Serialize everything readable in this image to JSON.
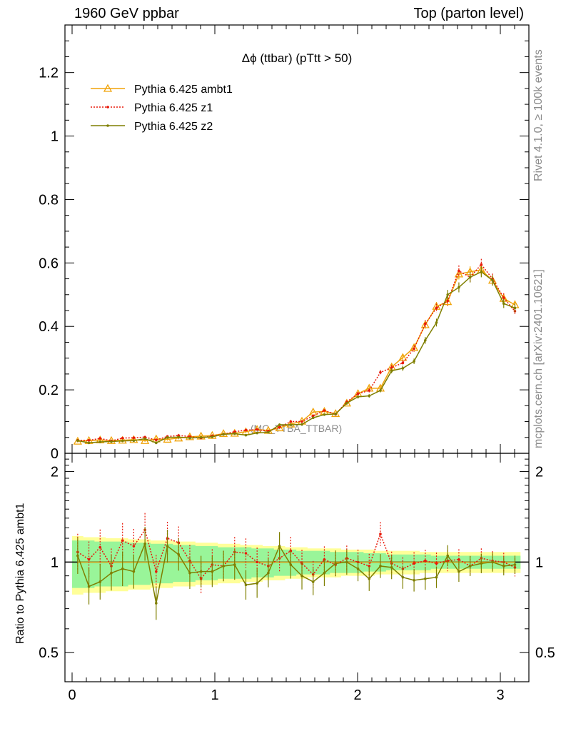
{
  "header": {
    "left": "1960 GeV ppbar",
    "right": "Top (parton level)"
  },
  "side": {
    "rivet": "Rivet 4.1.0, ≥ 100k events",
    "mcplots": "mcplots.cern.ch [arXiv:2401.10621]"
  },
  "chart_data": {
    "type": "line",
    "title": "Δϕ (ttbar) (pTtt > 50)",
    "watermark": "(MC_TTBA_TTBAR)",
    "xlabel": "",
    "ylabel": "",
    "xlim": [
      -0.05,
      3.2
    ],
    "ylim": [
      0,
      1.35
    ],
    "yticks": [
      0,
      0.2,
      0.4,
      0.6,
      0.8,
      1,
      1.2
    ],
    "ytick_labels": [
      "0",
      "0.2",
      "0.4",
      "0.6",
      "0.8",
      "1",
      "1.2"
    ],
    "xticks": [
      0,
      1,
      2,
      3
    ],
    "xtick_labels": [
      "0",
      "1",
      "2",
      "3"
    ],
    "x": [
      0.0393,
      0.1178,
      0.1963,
      0.2749,
      0.3534,
      0.432,
      0.5105,
      0.589,
      0.6676,
      0.7461,
      0.8247,
      0.9032,
      0.9817,
      1.0603,
      1.1388,
      1.2174,
      1.2959,
      1.3744,
      1.453,
      1.5315,
      1.6101,
      1.6886,
      1.7671,
      1.8457,
      1.9242,
      2.0028,
      2.0813,
      2.1598,
      2.2384,
      2.3169,
      2.3955,
      2.474,
      2.5525,
      2.6311,
      2.7096,
      2.7882,
      2.8667,
      2.9452,
      3.0238,
      3.1023
    ],
    "series": [
      {
        "name": "Pythia 6.425 ambt1",
        "color": "#f0a30a",
        "style": "solid",
        "marker": "triangle",
        "values": [
          0.038,
          0.04,
          0.042,
          0.04,
          0.041,
          0.043,
          0.04,
          0.045,
          0.044,
          0.048,
          0.052,
          0.054,
          0.056,
          0.062,
          0.063,
          0.068,
          0.075,
          0.072,
          0.08,
          0.092,
          0.101,
          0.13,
          0.132,
          0.125,
          0.158,
          0.188,
          0.205,
          0.205,
          0.272,
          0.302,
          0.333,
          0.405,
          0.463,
          0.478,
          0.565,
          0.572,
          0.578,
          0.545,
          0.488,
          0.468
        ]
      },
      {
        "name": "Pythia 6.425 z1",
        "color": "#e8190a",
        "style": "dotted",
        "marker": "dot",
        "values": [
          0.041,
          0.041,
          0.047,
          0.039,
          0.048,
          0.049,
          0.051,
          0.042,
          0.053,
          0.056,
          0.053,
          0.048,
          0.055,
          0.06,
          0.068,
          0.073,
          0.075,
          0.07,
          0.082,
          0.1,
          0.1,
          0.118,
          0.135,
          0.123,
          0.162,
          0.188,
          0.198,
          0.255,
          0.27,
          0.285,
          0.33,
          0.408,
          0.458,
          0.48,
          0.575,
          0.555,
          0.595,
          0.55,
          0.49,
          0.448
        ]
      },
      {
        "name": "Pythia 6.425 z2",
        "color": "#7f7f00",
        "style": "solid",
        "marker": "dot",
        "values": [
          0.04,
          0.033,
          0.036,
          0.037,
          0.039,
          0.04,
          0.046,
          0.033,
          0.05,
          0.051,
          0.048,
          0.05,
          0.052,
          0.06,
          0.062,
          0.057,
          0.064,
          0.066,
          0.09,
          0.09,
          0.091,
          0.112,
          0.122,
          0.124,
          0.158,
          0.178,
          0.181,
          0.198,
          0.26,
          0.268,
          0.29,
          0.356,
          0.412,
          0.5,
          0.523,
          0.555,
          0.572,
          0.545,
          0.472,
          0.458
        ]
      }
    ],
    "ratio": {
      "ylabel": "Ratio to Pythia 6.425 ambt1",
      "ylim": [
        0.4,
        2.3
      ],
      "yticks": [
        0.5,
        1,
        2
      ],
      "ytick_labels": [
        "0.5",
        "1",
        "2"
      ],
      "band_inner": [
        0.18,
        0.18,
        0.17,
        0.17,
        0.17,
        0.16,
        0.16,
        0.15,
        0.15,
        0.14,
        0.14,
        0.13,
        0.13,
        0.12,
        0.12,
        0.12,
        0.11,
        0.11,
        0.1,
        0.1,
        0.09,
        0.09,
        0.09,
        0.08,
        0.08,
        0.08,
        0.07,
        0.07,
        0.06,
        0.06,
        0.06,
        0.06,
        0.05,
        0.05,
        0.05,
        0.05,
        0.05,
        0.05,
        0.05,
        0.05
      ],
      "band_outer": [
        0.22,
        0.21,
        0.21,
        0.2,
        0.2,
        0.19,
        0.19,
        0.18,
        0.18,
        0.17,
        0.17,
        0.16,
        0.16,
        0.15,
        0.15,
        0.14,
        0.14,
        0.13,
        0.13,
        0.12,
        0.12,
        0.11,
        0.11,
        0.11,
        0.1,
        0.1,
        0.1,
        0.09,
        0.09,
        0.09,
        0.09,
        0.08,
        0.08,
        0.08,
        0.08,
        0.08,
        0.08,
        0.08,
        0.08,
        0.08
      ],
      "series": [
        {
          "name": "Pythia 6.425 z1",
          "values": [
            1.08,
            1.02,
            1.12,
            0.97,
            1.18,
            1.13,
            1.28,
            0.93,
            1.2,
            1.16,
            1.01,
            0.88,
            0.98,
            0.97,
            1.08,
            1.07,
            1.0,
            0.97,
            1.03,
            1.09,
            0.99,
            0.91,
            1.02,
            0.98,
            1.03,
            1.0,
            0.97,
            1.24,
            0.99,
            0.95,
            0.99,
            1.01,
            0.99,
            1.01,
            1.02,
            0.97,
            1.03,
            1.01,
            1.0,
            0.96
          ]
        },
        {
          "name": "Pythia 6.425 z2",
          "values": [
            1.05,
            0.83,
            0.86,
            0.92,
            0.95,
            0.93,
            1.15,
            0.73,
            1.13,
            1.06,
            0.92,
            0.93,
            0.93,
            0.97,
            0.98,
            0.84,
            0.85,
            0.92,
            1.13,
            0.98,
            0.9,
            0.86,
            0.92,
            0.99,
            1.0,
            0.95,
            0.88,
            0.97,
            0.96,
            0.89,
            0.87,
            0.88,
            0.89,
            1.05,
            0.93,
            0.97,
            0.99,
            1.0,
            0.97,
            0.98
          ]
        }
      ]
    }
  }
}
